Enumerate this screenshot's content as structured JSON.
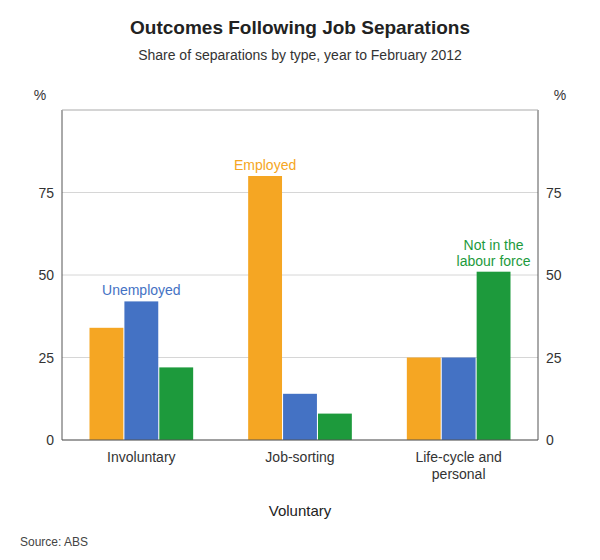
{
  "chart_data": {
    "type": "bar",
    "title": "Outcomes Following Job Separations",
    "subtitle": "Share of separations by type, year to February 2012",
    "source": "Source: ABS",
    "xlabel": "Voluntary",
    "ylabel": "%",
    "y2label": "%",
    "categories": [
      "Involuntary",
      "Job-sorting",
      "Life-cycle and\npersonal"
    ],
    "series": [
      {
        "color": "#F5A623",
        "values": [
          34,
          80,
          25
        ]
      },
      {
        "color": "#4472C4",
        "values": [
          42,
          14,
          25
        ]
      },
      {
        "color": "#1D9A3C",
        "values": [
          22,
          8,
          51
        ]
      }
    ],
    "ylim": [
      0,
      100
    ],
    "yticks": [
      0,
      25,
      50,
      75
    ],
    "y2lim": [
      0,
      100
    ],
    "y2ticks": [
      0,
      25,
      50,
      75
    ],
    "grid": true,
    "annotations": [
      {
        "text": "Employed",
        "series": 0,
        "category": 1
      },
      {
        "text": "Unemployed",
        "series": 1,
        "category": 0
      },
      {
        "text": "Not in the\nlabour force",
        "series": 2,
        "category": 2
      }
    ]
  }
}
